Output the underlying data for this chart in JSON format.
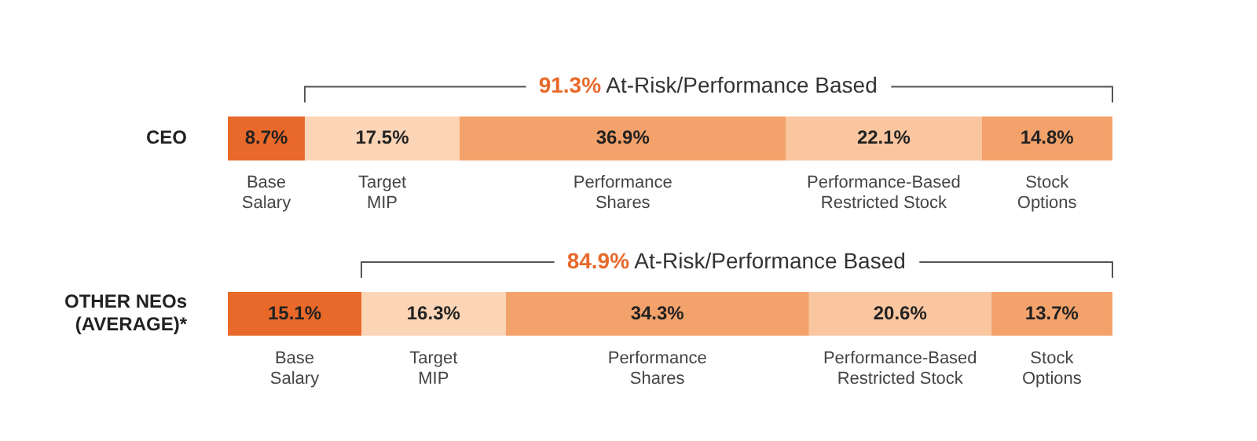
{
  "chart_data": {
    "type": "bar",
    "orientation": "horizontal",
    "stacked": true,
    "categories": [
      "CEO",
      "OTHER NEOs (AVERAGE)*"
    ],
    "xlim": [
      0,
      100
    ],
    "series": [
      {
        "name": "Base Salary",
        "color": "#e8692a",
        "values": [
          8.7,
          15.1
        ],
        "value_labels": [
          "8.7%",
          "15.1%"
        ]
      },
      {
        "name": "Target MIP",
        "color": "#fcd5b6",
        "values": [
          17.5,
          16.3
        ],
        "value_labels": [
          "17.5%",
          "16.3%"
        ]
      },
      {
        "name": "Performance Shares",
        "color": "#f3a26c",
        "values": [
          36.9,
          34.3
        ],
        "value_labels": [
          "36.9%",
          "34.3%"
        ]
      },
      {
        "name": "Performance-Based Restricted Stock",
        "color": "#f9c6a0",
        "values": [
          22.1,
          20.6
        ],
        "value_labels": [
          "22.1%",
          "20.6%"
        ]
      },
      {
        "name": "Stock Options",
        "color": "#f3a26c",
        "values": [
          14.8,
          13.7
        ],
        "value_labels": [
          "14.8%",
          "13.7%"
        ]
      }
    ],
    "annotations": [
      "91.3% At-Risk/Performance Based",
      "84.9% At-Risk/Performance Based"
    ]
  }
}
